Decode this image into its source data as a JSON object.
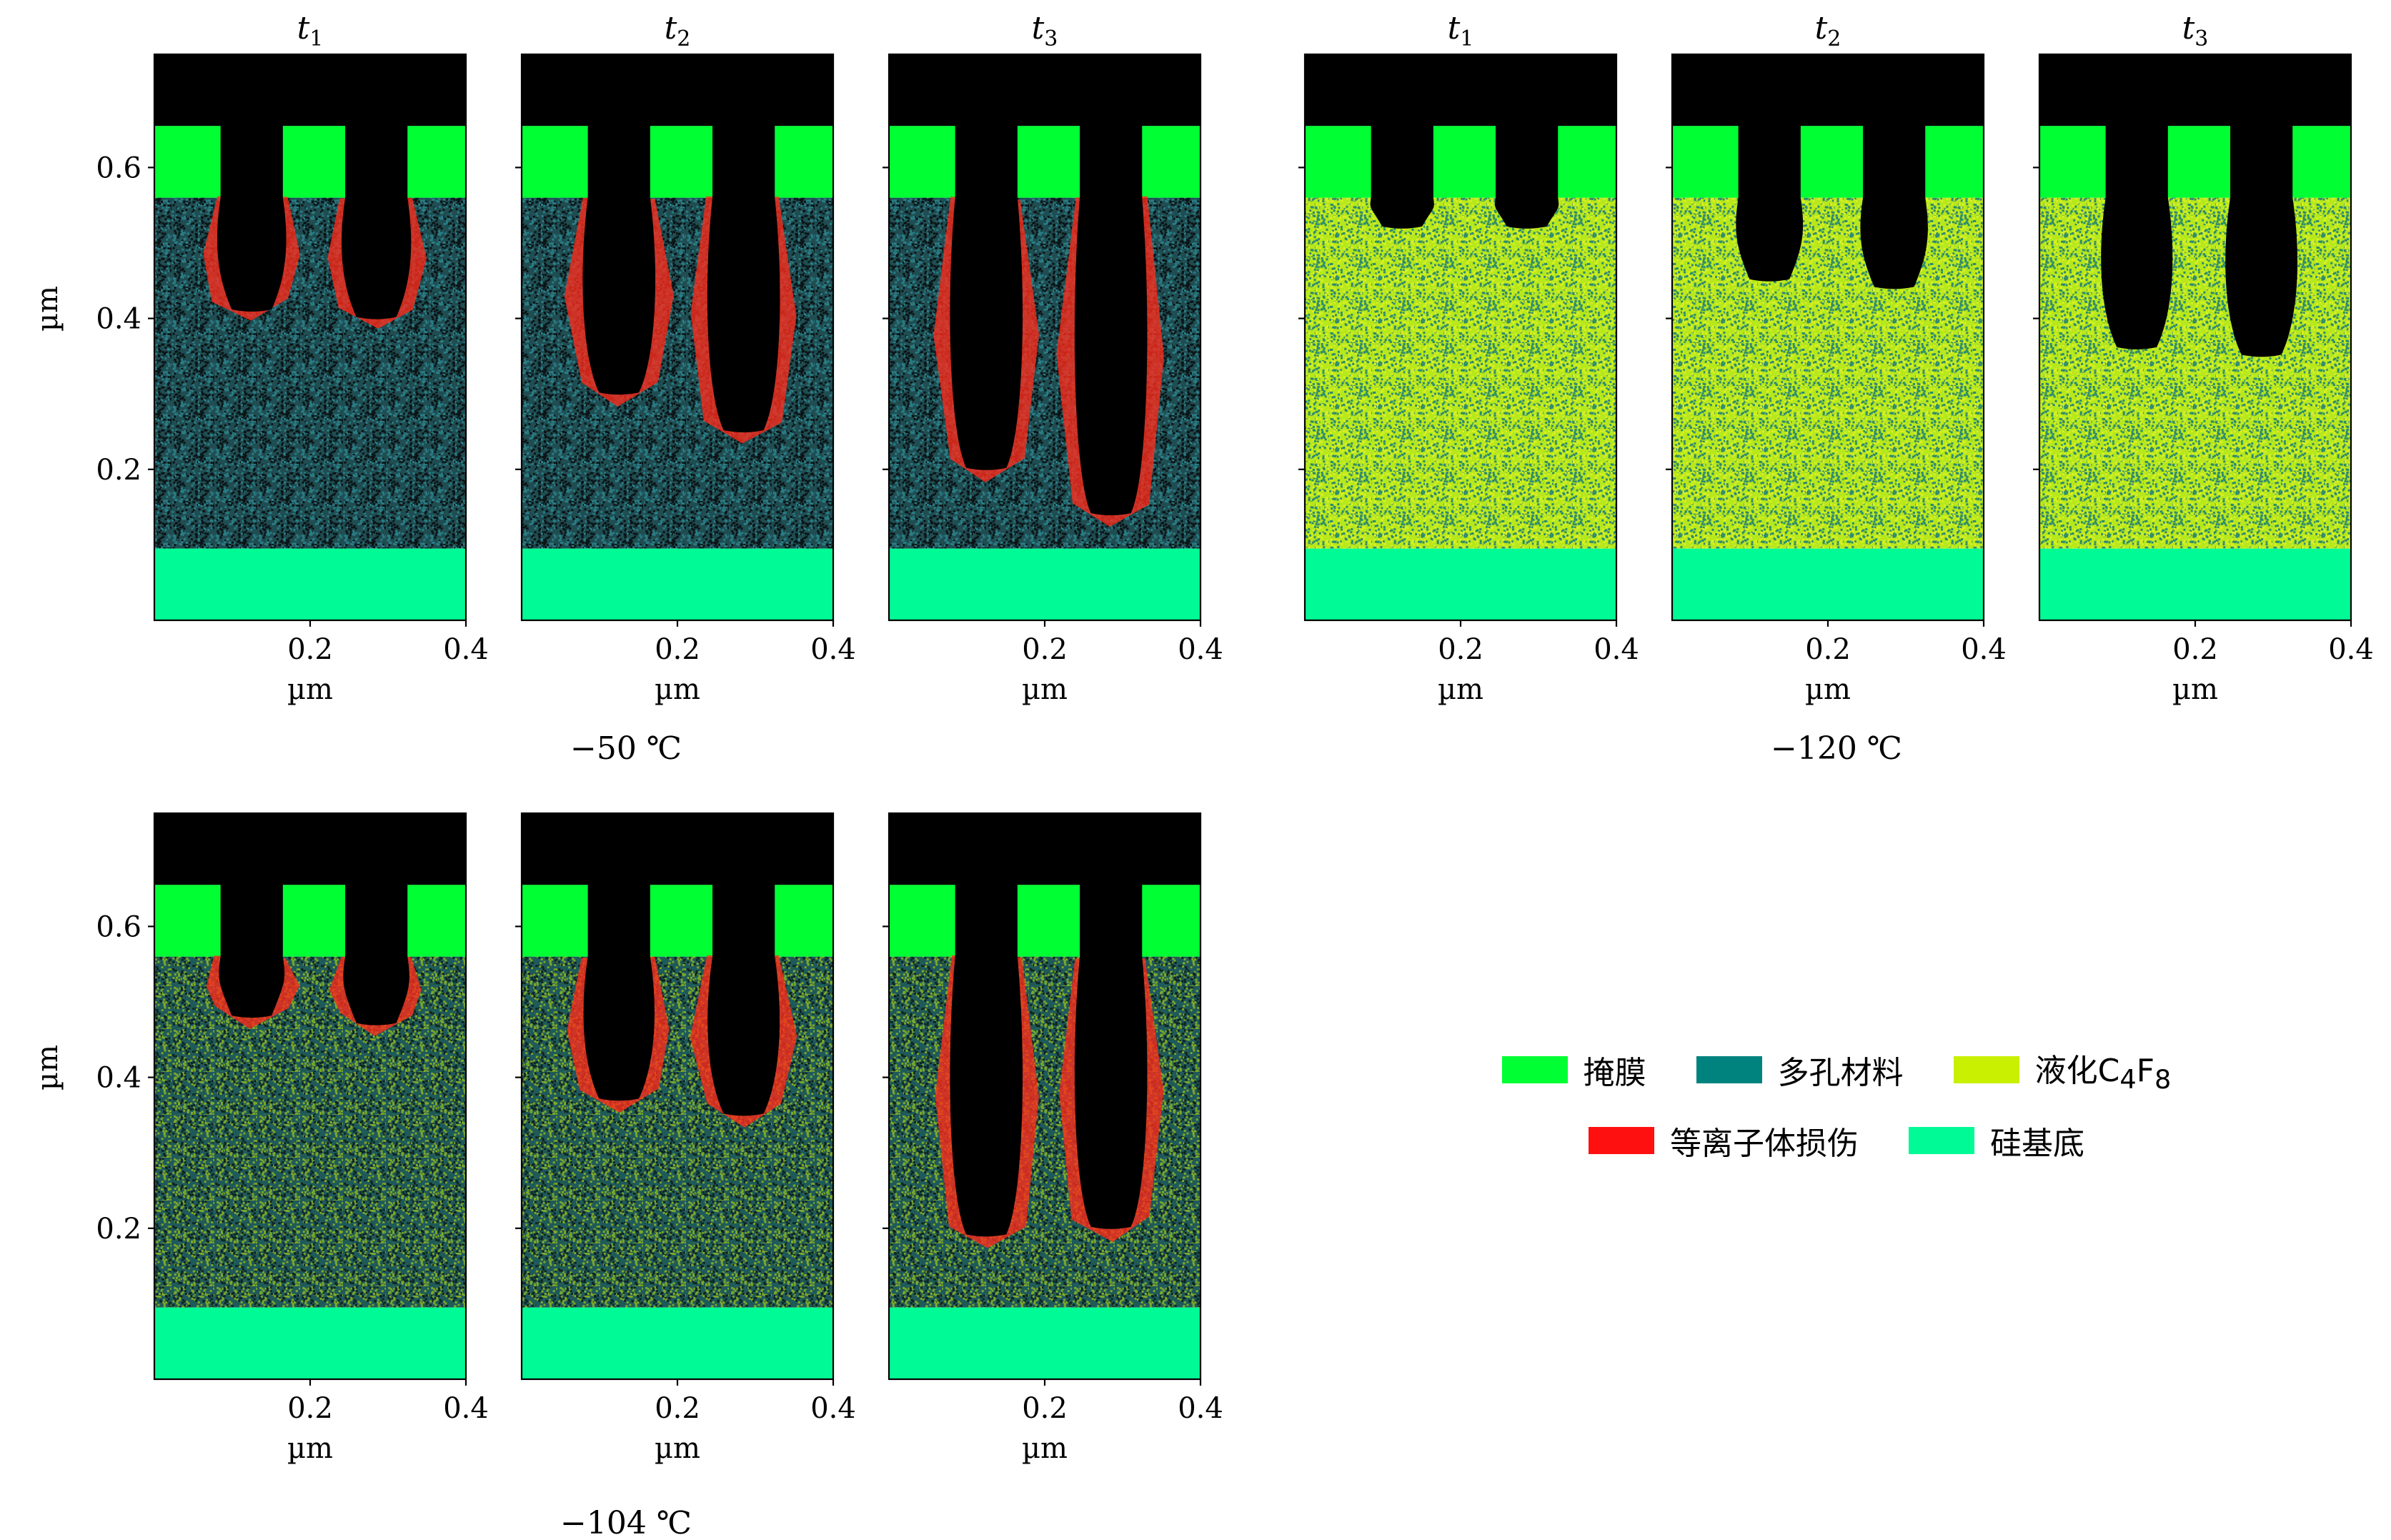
{
  "figure": {
    "type": "simulation-snapshot-panels",
    "axis_unit": "µm",
    "x_ticks": [
      "0.2",
      "0.4"
    ],
    "y_ticks": [
      "0.6",
      "0.4",
      "0.2"
    ],
    "x_range": [
      0,
      0.4
    ],
    "y_range": [
      0,
      0.75
    ],
    "mask": {
      "y_bottom": 0.56,
      "y_top": 0.655,
      "openings_x": [
        [
          0.085,
          0.165
        ],
        [
          0.245,
          0.325
        ]
      ]
    },
    "substrate": {
      "y_top": 0.095
    },
    "groups": [
      {
        "label": "−50 ℃",
        "material_colors": [
          "#1f4d52",
          "#2a7d85",
          "#0b1416"
        ],
        "damage_color": "#ff2a1a",
        "panels": [
          {
            "title": "t",
            "subscript": "1",
            "trench_bottoms": [
              0.41,
              0.4
            ]
          },
          {
            "title": "t",
            "subscript": "2",
            "trench_bottoms": [
              0.3,
              0.25
            ]
          },
          {
            "title": "t",
            "subscript": "3",
            "trench_bottoms": [
              0.2,
              0.14
            ]
          }
        ]
      },
      {
        "label": "−120 ℃",
        "material_colors": [
          "#b7e81c",
          "#d7f023",
          "#2f8a6e"
        ],
        "damage_color": "#ff2a1a",
        "panels": [
          {
            "title": "t",
            "subscript": "1",
            "trench_bottoms": [
              0.52,
              0.52
            ]
          },
          {
            "title": "t",
            "subscript": "2",
            "trench_bottoms": [
              0.45,
              0.44
            ]
          },
          {
            "title": "t",
            "subscript": "3",
            "trench_bottoms": [
              0.36,
              0.35
            ]
          }
        ]
      },
      {
        "label": "−104 ℃",
        "material_colors": [
          "#1f5a5a",
          "#0f2422",
          "#7ca82a"
        ],
        "damage_color": "#ff2a1a",
        "panels": [
          {
            "title": "",
            "subscript": "",
            "trench_bottoms": [
              0.48,
              0.47
            ]
          },
          {
            "title": "",
            "subscript": "",
            "trench_bottoms": [
              0.37,
              0.35
            ]
          },
          {
            "title": "",
            "subscript": "",
            "trench_bottoms": [
              0.19,
              0.2
            ]
          }
        ]
      }
    ]
  },
  "legend": {
    "row1": [
      {
        "label": "掩膜",
        "color": "#00ff33"
      },
      {
        "label": "多孔材料",
        "color": "#00827f"
      },
      {
        "label": "液化C",
        "sub1": "4",
        "mid": "F",
        "sub2": "8",
        "color": "#c8f000"
      }
    ],
    "row2": [
      {
        "label": "等离子体损伤",
        "color": "#ff1010"
      },
      {
        "label": "硅基底",
        "color": "#00fa95"
      }
    ]
  },
  "colors": {
    "mask": "#00ff33",
    "substrate": "#00fa95",
    "void": "#000000"
  }
}
